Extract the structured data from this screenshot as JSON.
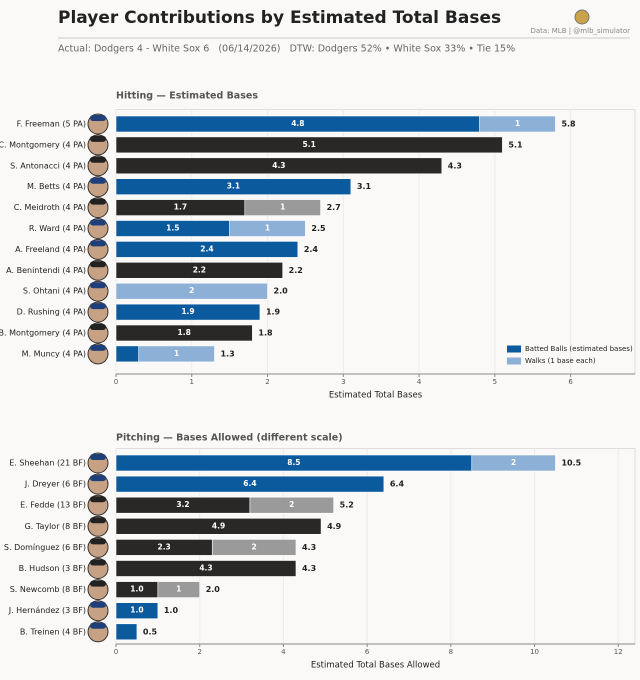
{
  "header": {
    "title": "Player Contributions by Estimated Total Bases",
    "subtitle": "Actual: Dodgers 4 - White Sox 6   (06/14/2026)   DTW: Dodgers 52% • White Sox 33% • Tie 15%",
    "source": "Data: MLB  |  @mlb_simulator"
  },
  "chart_data": [
    {
      "type": "bar",
      "orientation": "horizontal",
      "stacked": true,
      "title": "Hitting  —  Estimated Bases",
      "xlabel": "Estimated Total Bases",
      "categories": [
        "F. Freeman  (5 PA)",
        "C. Montgomery  (4 PA)",
        "S. Antonacci  (4 PA)",
        "M. Betts  (4 PA)",
        "C. Meidroth  (4 PA)",
        "R. Ward  (4 PA)",
        "A. Freeland  (4 PA)",
        "A. Benintendi  (4 PA)",
        "S. Ohtani  (4 PA)",
        "D. Rushing  (4 PA)",
        "B. Montgomery  (4 PA)",
        "M. Muncy  (4 PA)"
      ],
      "series": [
        {
          "name": "Batted Balls (estimated bases)",
          "color": "#0b5a9e",
          "colors": [
            "#0b5a9e",
            "#2a2826",
            "#2a2826",
            "#0b5a9e",
            "#2a2826",
            "#0b5a9e",
            "#0b5a9e",
            "#2a2826",
            "#0b5a9e",
            "#0b5a9e",
            "#2a2826",
            "#0b5a9e"
          ],
          "values": [
            4.8,
            5.1,
            4.3,
            3.1,
            1.7,
            1.5,
            2.4,
            2.2,
            0,
            1.9,
            1.8,
            0.3
          ],
          "value_labels": [
            "4.8",
            "5.1",
            "4.3",
            "3.1",
            "1.7",
            "1.5",
            "2.4",
            "2.2",
            null,
            "1.9",
            "1.8",
            null
          ]
        },
        {
          "name": "Walks (1 base each)",
          "color": "#8cb0d6",
          "colors": [
            "#8cb0d6",
            null,
            null,
            null,
            "#9a9a9a",
            "#8cb0d6",
            null,
            null,
            "#8cb0d6",
            null,
            null,
            "#8cb0d6"
          ],
          "values": [
            1,
            null,
            null,
            null,
            1,
            1,
            null,
            null,
            2,
            null,
            null,
            1
          ],
          "value_labels": [
            "1",
            null,
            null,
            null,
            "1",
            "1",
            null,
            null,
            "2",
            null,
            null,
            "1"
          ]
        }
      ],
      "total_labels": [
        "5.8",
        "5.1",
        "4.3",
        "3.1",
        "2.7",
        "2.5",
        "2.4",
        "2.2",
        "2.0",
        "1.9",
        "1.8",
        "1.3"
      ],
      "xlim": [
        0,
        6.85
      ],
      "xticks": [
        0,
        1,
        2,
        3,
        4,
        5,
        6
      ],
      "grid": true,
      "legend": "lower right"
    },
    {
      "type": "bar",
      "orientation": "horizontal",
      "stacked": true,
      "title": "Pitching  —  Bases Allowed  (different scale)",
      "xlabel": "Estimated Total Bases Allowed",
      "categories": [
        "E. Sheehan  (21 BF)",
        "J. Dreyer  (6 BF)",
        "E. Fedde  (13 BF)",
        "G. Taylor  (8 BF)",
        "S. Domínguez  (6 BF)",
        "B. Hudson  (3 BF)",
        "S. Newcomb  (8 BF)",
        "J. Hernández  (3 BF)",
        "B. Treinen  (4 BF)"
      ],
      "series": [
        {
          "colors": [
            "#0b5a9e",
            "#0b5a9e",
            "#2a2826",
            "#2a2826",
            "#2a2826",
            "#2a2826",
            "#2a2826",
            "#0b5a9e",
            "#0b5a9e"
          ],
          "values": [
            8.5,
            6.4,
            3.2,
            4.9,
            2.3,
            4.3,
            1.0,
            1.0,
            0.5
          ],
          "value_labels": [
            "8.5",
            "6.4",
            "3.2",
            "4.9",
            "2.3",
            "4.3",
            "1.0",
            "1.0",
            null
          ]
        },
        {
          "colors": [
            "#8cb0d6",
            null,
            "#9a9a9a",
            null,
            "#9a9a9a",
            null,
            "#9a9a9a",
            null,
            null
          ],
          "values": [
            2,
            null,
            2,
            null,
            2,
            null,
            1,
            null,
            null
          ],
          "value_labels": [
            "2",
            null,
            "2",
            null,
            "2",
            null,
            "1",
            null,
            null
          ]
        }
      ],
      "total_labels": [
        "10.5",
        "6.4",
        "5.2",
        "4.9",
        "4.3",
        "4.3",
        "2.0",
        "1.0",
        "0.5"
      ],
      "xlim": [
        0,
        12.4
      ],
      "xticks": [
        0,
        2,
        4,
        6,
        8,
        10,
        12
      ],
      "grid": true
    }
  ]
}
